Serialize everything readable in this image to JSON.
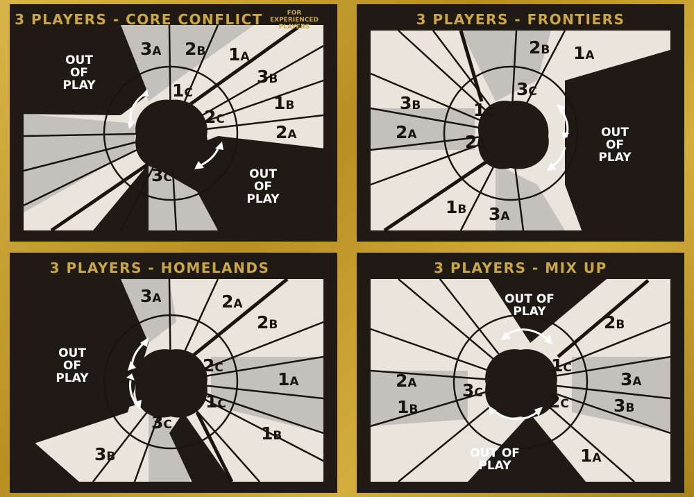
{
  "colors": {
    "gold_border": "#c9a233",
    "panel_bg": "#1f1a14",
    "title_gold": "#c9a64a",
    "space_light": "#e9e4dc",
    "space_grey": "#c4c1bc",
    "ink": "#1a140e",
    "arrow_white": "#ffffff"
  },
  "panels": [
    {
      "id": "core-conflict",
      "title": "3 Players - Core Conflict",
      "subtitle": "For experienced players",
      "out_of_play_labels": [
        "OUT\nOF\nPLAY",
        "OUT\nOF\nPLAY"
      ],
      "seats": [
        {
          "num": "3",
          "letter": "A"
        },
        {
          "num": "2",
          "letter": "B"
        },
        {
          "num": "1",
          "letter": "A"
        },
        {
          "num": "3",
          "letter": "B"
        },
        {
          "num": "1",
          "letter": "B"
        },
        {
          "num": "2",
          "letter": "A"
        },
        {
          "num": "1",
          "letter": "C"
        },
        {
          "num": "2",
          "letter": "C"
        },
        {
          "num": "3",
          "letter": "C"
        }
      ]
    },
    {
      "id": "frontiers",
      "title": "3 Players - Frontiers",
      "out_of_play_labels": [
        "OUT\nOF\nPLAY"
      ],
      "seats": [
        {
          "num": "2",
          "letter": "B"
        },
        {
          "num": "1",
          "letter": "A"
        },
        {
          "num": "3",
          "letter": "C"
        },
        {
          "num": "3",
          "letter": "B"
        },
        {
          "num": "1",
          "letter": "C"
        },
        {
          "num": "2",
          "letter": "A"
        },
        {
          "num": "2",
          "letter": "C"
        },
        {
          "num": "1",
          "letter": "B"
        },
        {
          "num": "3",
          "letter": "A"
        }
      ]
    },
    {
      "id": "homelands",
      "title": "3 Players - Homelands",
      "out_of_play_labels": [
        "OUT\nOF\nPLAY"
      ],
      "seats": [
        {
          "num": "3",
          "letter": "A"
        },
        {
          "num": "2",
          "letter": "A"
        },
        {
          "num": "2",
          "letter": "B"
        },
        {
          "num": "2",
          "letter": "C"
        },
        {
          "num": "1",
          "letter": "A"
        },
        {
          "num": "1",
          "letter": "C"
        },
        {
          "num": "3",
          "letter": "C"
        },
        {
          "num": "1",
          "letter": "B"
        },
        {
          "num": "3",
          "letter": "B"
        }
      ]
    },
    {
      "id": "mix-up",
      "title": "3 Players - Mix Up",
      "out_of_play_labels": [
        "OUT OF\nPLAY",
        "OUT OF\nPLAY"
      ],
      "seats": [
        {
          "num": "2",
          "letter": "B"
        },
        {
          "num": "1",
          "letter": "C"
        },
        {
          "num": "3",
          "letter": "A"
        },
        {
          "num": "3",
          "letter": "B"
        },
        {
          "num": "2",
          "letter": "C"
        },
        {
          "num": "1",
          "letter": "A"
        },
        {
          "num": "2",
          "letter": "A"
        },
        {
          "num": "3",
          "letter": "C"
        },
        {
          "num": "1",
          "letter": "B"
        }
      ]
    }
  ]
}
